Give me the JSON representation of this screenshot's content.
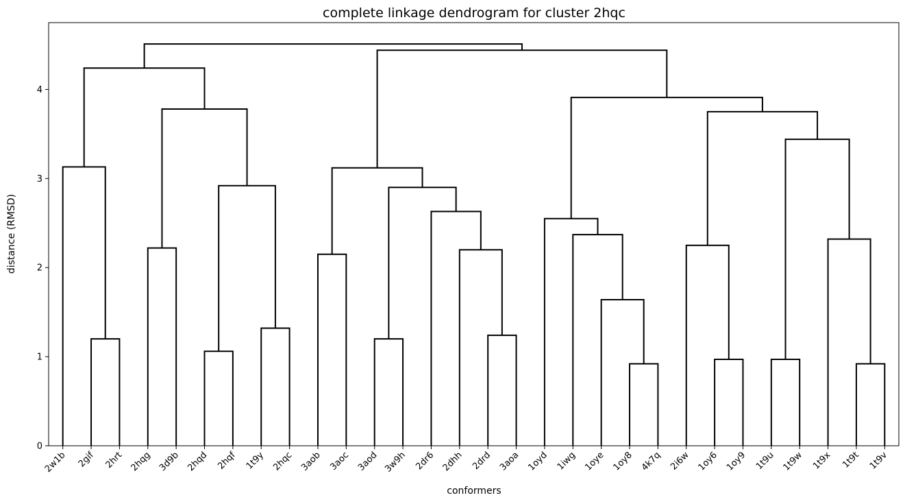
{
  "chart_data": {
    "type": "dendrogram",
    "title": "complete linkage dendrogram for cluster 2hqc",
    "xlabel": "conformers",
    "ylabel": "distance (RMSD)",
    "ylim": [
      0,
      4.75
    ],
    "yticks": [
      0,
      1,
      2,
      3,
      4
    ],
    "grid": false,
    "leaves": [
      "2w1b",
      "2gif",
      "2hrt",
      "2hqg",
      "3d9b",
      "2hqd",
      "2hqf",
      "1t9y",
      "2hqc",
      "3aob",
      "3aoc",
      "3aod",
      "3w9h",
      "2dr6",
      "2dhh",
      "2drd",
      "3aoa",
      "1oyd",
      "1iwg",
      "1oye",
      "1oy8",
      "4k7q",
      "2i6w",
      "1oy6",
      "1oy9",
      "1t9u",
      "1t9w",
      "1t9x",
      "1t9t",
      "1t9v"
    ],
    "merges": [
      {
        "left": "2gif",
        "right": "2hrt",
        "height": 1.2
      },
      {
        "left": "2w1b",
        "right": 30,
        "height": 3.13
      },
      {
        "left": "2hqg",
        "right": "3d9b",
        "height": 2.22
      },
      {
        "left": "2hqd",
        "right": "2hqf",
        "height": 1.06
      },
      {
        "left": "1t9y",
        "right": "2hqc",
        "height": 1.32
      },
      {
        "left": 33,
        "right": 34,
        "height": 2.92
      },
      {
        "left": 32,
        "right": 35,
        "height": 3.78
      },
      {
        "left": 31,
        "right": 36,
        "height": 4.24
      },
      {
        "left": "3aob",
        "right": "3aoc",
        "height": 2.15
      },
      {
        "left": "3aod",
        "right": "3w9h",
        "height": 1.2
      },
      {
        "left": "2drd",
        "right": "3aoa",
        "height": 1.24
      },
      {
        "left": "2dhh",
        "right": 40,
        "height": 2.2
      },
      {
        "left": "2dr6",
        "right": 41,
        "height": 2.63
      },
      {
        "left": 39,
        "right": 42,
        "height": 2.9
      },
      {
        "left": 38,
        "right": 43,
        "height": 3.12
      },
      {
        "left": "1oy8",
        "right": "4k7q",
        "height": 0.92
      },
      {
        "left": "1oye",
        "right": 45,
        "height": 1.64
      },
      {
        "left": "1iwg",
        "right": 46,
        "height": 2.37
      },
      {
        "left": "1oyd",
        "right": 47,
        "height": 2.55
      },
      {
        "left": "1oy6",
        "right": "1oy9",
        "height": 0.97
      },
      {
        "left": "2i6w",
        "right": 49,
        "height": 2.25
      },
      {
        "left": "1t9u",
        "right": "1t9w",
        "height": 0.97
      },
      {
        "left": "1t9t",
        "right": "1t9v",
        "height": 0.92
      },
      {
        "left": "1t9x",
        "right": 52,
        "height": 2.32
      },
      {
        "left": 51,
        "right": 53,
        "height": 3.44
      },
      {
        "left": 50,
        "right": 54,
        "height": 3.75
      },
      {
        "left": 48,
        "right": 55,
        "height": 3.91
      },
      {
        "left": 44,
        "right": 56,
        "height": 4.44
      },
      {
        "left": 37,
        "right": 57,
        "height": 4.51
      }
    ]
  }
}
